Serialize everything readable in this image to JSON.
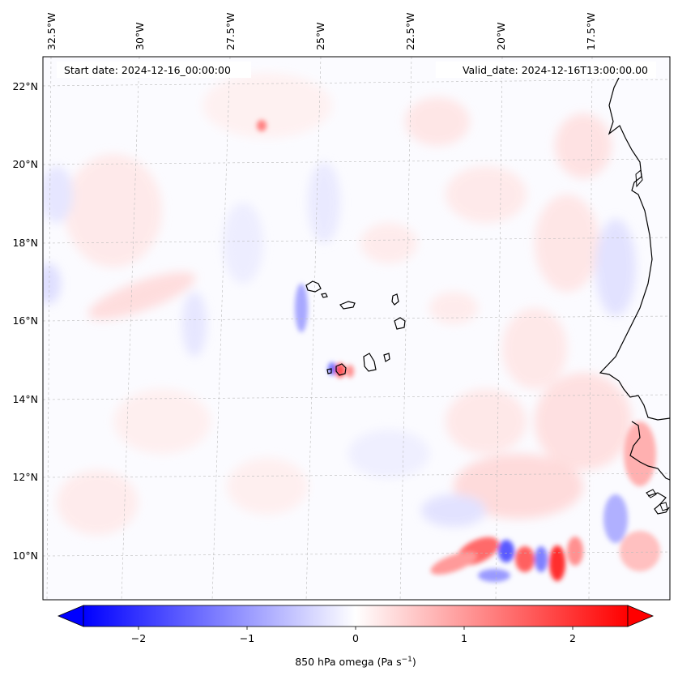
{
  "header": {
    "start_date": "Start date: 2024-12-16_00:00:00",
    "valid_date": "Valid_date: 2024-12-16T13:00:00.00"
  },
  "map": {
    "lon_labels": [
      "32.5°W",
      "30°W",
      "27.5°W",
      "25°W",
      "22.5°W",
      "20°W",
      "17.5°W"
    ],
    "lat_labels": [
      "22°N",
      "20°N",
      "18°N",
      "16°N",
      "14°N",
      "12°N",
      "10°N"
    ],
    "field": "850 hPa omega"
  },
  "colorbar": {
    "ticks": [
      "−2",
      "−1",
      "0",
      "1",
      "2"
    ],
    "label": "850 hPa omega (Pa s",
    "label_exp": "−1",
    "label_close": ")",
    "range": [
      -2.7,
      2.7
    ],
    "colors": {
      "negative": "#0000ff",
      "zero": "#ffffff",
      "positive": "#ff0000"
    }
  }
}
